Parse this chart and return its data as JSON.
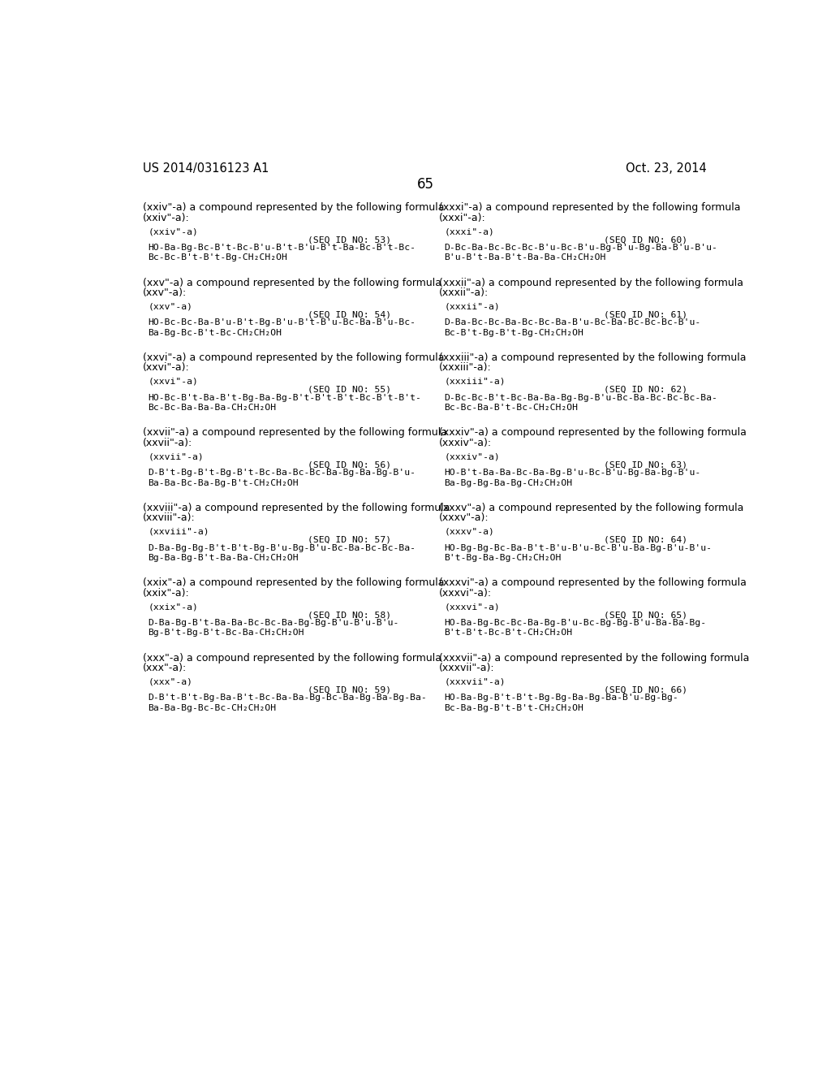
{
  "header_left": "US 2014/0316123 A1",
  "header_right": "Oct. 23, 2014",
  "page_number": "65",
  "background_color": "#ffffff",
  "text_color": "#000000",
  "left_entries": [
    {
      "intro1": "(xxiv\"-a) a compound represented by the following formula",
      "intro2": "(xxiv\"-a):",
      "label": "(xxiv\"-a)",
      "seq": "(SEQ ID NO: 53)",
      "line1": "HO-Ba-Bg-Bc-B't-Bc-B'u-B't-B'u-B't-Ba-Bc-B't-Bc-",
      "line2": "Bc-Bc-B't-B't-Bg-CH₂CH₂OH"
    },
    {
      "intro1": "(xxv\"-a) a compound represented by the following formula",
      "intro2": "(xxv\"-a):",
      "label": "(xxv\"-a)",
      "seq": "(SEQ ID NO: 54)",
      "line1": "HO-Bc-Bc-Ba-B'u-B't-Bg-B'u-B't-B'u-Bc-Ba-B'u-Bc-",
      "line2": "Ba-Bg-Bc-B't-Bc-CH₂CH₂OH"
    },
    {
      "intro1": "(xxvi\"-a) a compound represented by the following formula",
      "intro2": "(xxvi\"-a):",
      "label": "(xxvi\"-a)",
      "seq": "(SEQ ID NO: 55)",
      "line1": "HO-Bc-B't-Ba-B't-Bg-Ba-Bg-B't-B't-B't-Bc-B't-B't-",
      "line2": "Bc-Bc-Ba-Ba-Ba-CH₂CH₂OH"
    },
    {
      "intro1": "(xxvii\"-a) a compound represented by the following formula",
      "intro2": "(xxvii\"-a):",
      "label": "(xxvii\"-a)",
      "seq": "(SEQ ID NO: 56)",
      "line1": "D-B't-Bg-B't-Bg-B't-Bc-Ba-Bc-Bc-Ba-Bg-Ba-Bg-B'u-",
      "line2": "Ba-Ba-Bc-Ba-Bg-B't-CH₂CH₂OH"
    },
    {
      "intro1": "(xxviii\"-a) a compound represented by the following formula",
      "intro2": "(xxviii\"-a):",
      "label": "(xxviii\"-a)",
      "seq": "(SEQ ID NO: 57)",
      "line1": "D-Ba-Bg-Bg-B't-B't-Bg-B'u-Bg-B'u-Bc-Ba-Bc-Bc-Ba-",
      "line2": "Bg-Ba-Bg-B't-Ba-Ba-CH₂CH₂OH"
    },
    {
      "intro1": "(xxix\"-a) a compound represented by the following formula",
      "intro2": "(xxix\"-a):",
      "label": "(xxix\"-a)",
      "seq": "(SEQ ID NO: 58)",
      "line1": "D-Ba-Bg-B't-Ba-Ba-Bc-Bc-Ba-Bg-Bg-B'u-B'u-B'u-",
      "line2": "Bg-B't-Bg-B't-Bc-Ba-CH₂CH₂OH"
    },
    {
      "intro1": "(xxx\"-a) a compound represented by the following formula",
      "intro2": "(xxx\"-a):",
      "label": "(xxx\"-a)",
      "seq": "(SEQ ID NO: 59)",
      "line1": "D-B't-B't-Bg-Ba-B't-Bc-Ba-Ba-Bg-Bc-Ba-Bg-Ba-Bg-Ba-",
      "line2": "Ba-Ba-Bg-Bc-Bc-CH₂CH₂OH"
    }
  ],
  "right_entries": [
    {
      "intro1": "(xxxi\"-a) a compound represented by the following formula",
      "intro2": "(xxxi\"-a):",
      "label": "(xxxi\"-a)",
      "seq": "(SEQ ID NO: 60)",
      "line1": "D-Bc-Ba-Bc-Bc-Bc-B'u-Bc-B'u-Bg-B'u-Bg-Ba-B'u-B'u-",
      "line2": "B'u-B't-Ba-B't-Ba-Ba-CH₂CH₂OH"
    },
    {
      "intro1": "(xxxii\"-a) a compound represented by the following formula",
      "intro2": "(xxxii\"-a):",
      "label": "(xxxii\"-a)",
      "seq": "(SEQ ID NO: 61)",
      "line1": "D-Ba-Bc-Bc-Ba-Bc-Bc-Ba-B'u-Bc-Ba-Bc-Bc-Bc-B'u-",
      "line2": "Bc-B't-Bg-B't-Bg-CH₂CH₂OH"
    },
    {
      "intro1": "(xxxiii\"-a) a compound represented by the following formula",
      "intro2": "(xxxiii\"-a):",
      "label": "(xxxiii\"-a)",
      "seq": "(SEQ ID NO: 62)",
      "line1": "D-Bc-Bc-B't-Bc-Ba-Ba-Bg-Bg-B'u-Bc-Ba-Bc-Bc-Bc-Ba-",
      "line2": "Bc-Bc-Ba-B't-Bc-CH₂CH₂OH"
    },
    {
      "intro1": "(xxxiv\"-a) a compound represented by the following formula",
      "intro2": "(xxxiv\"-a):",
      "label": "(xxxiv\"-a)",
      "seq": "(SEQ ID NO: 63)",
      "line1": "HO-B't-Ba-Ba-Bc-Ba-Bg-B'u-Bc-B'u-Bg-Ba-Bg-B'u-",
      "line2": "Ba-Bg-Bg-Ba-Bg-CH₂CH₂OH"
    },
    {
      "intro1": "(xxxv\"-a) a compound represented by the following formula",
      "intro2": "(xxxv\"-a):",
      "label": "(xxxv\"-a)",
      "seq": "(SEQ ID NO: 64)",
      "line1": "HO-Bg-Bg-Bc-Ba-B't-B'u-B'u-Bc-B'u-Ba-Bg-B'u-B'u-",
      "line2": "B't-Bg-Ba-Bg-CH₂CH₂OH"
    },
    {
      "intro1": "(xxxvi\"-a) a compound represented by the following formula",
      "intro2": "(xxxvi\"-a):",
      "label": "(xxxvi\"-a)",
      "seq": "(SEQ ID NO: 65)",
      "line1": "HO-Ba-Bg-Bc-Bc-Ba-Bg-B'u-Bc-Bg-Bg-B'u-Ba-Ba-Bg-",
      "line2": "B't-B't-Bc-B't-CH₂CH₂OH"
    },
    {
      "intro1": "(xxxvii\"-a) a compound represented by the following formula",
      "intro2": "(xxxvii\"-a):",
      "label": "(xxxvii\"-a)",
      "seq": "(SEQ ID NO: 66)",
      "line1": "HO-Ba-Bg-B't-B't-Bg-Bg-Ba-Bg-Ba-B'u-Bg-Bg-",
      "line2": "Bc-Ba-Bg-B't-B't-CH₂CH₂OH"
    }
  ]
}
